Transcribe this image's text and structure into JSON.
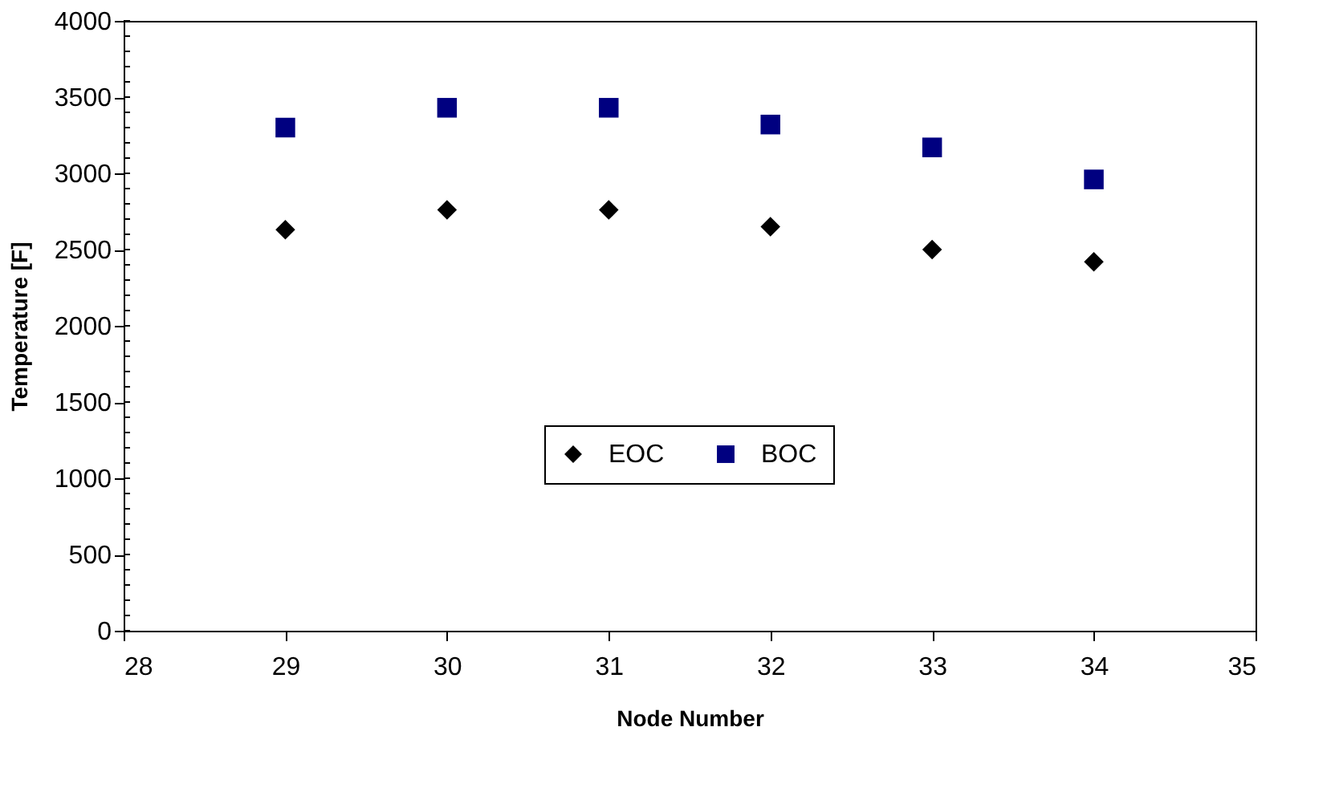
{
  "chart_data": {
    "type": "scatter",
    "xlabel": "Node Number",
    "ylabel": "Temperature  [F]",
    "x": [
      29,
      30,
      31,
      32,
      33,
      34
    ],
    "series": [
      {
        "name": "EOC",
        "color": "#000000",
        "marker": "diamond",
        "values": [
          2630,
          2760,
          2760,
          2650,
          2500,
          2420
        ]
      },
      {
        "name": "BOC",
        "color": "#000080",
        "marker": "square",
        "values": [
          3300,
          3430,
          3430,
          3320,
          3170,
          2960
        ]
      }
    ],
    "xlim": [
      28,
      35
    ],
    "xticks": [
      28,
      29,
      30,
      31,
      32,
      33,
      34,
      35
    ],
    "ylim": [
      0,
      4000
    ],
    "yticks": [
      0,
      500,
      1000,
      1500,
      2000,
      2500,
      3000,
      3500,
      4000
    ],
    "grid": false,
    "legend": "bottom"
  }
}
